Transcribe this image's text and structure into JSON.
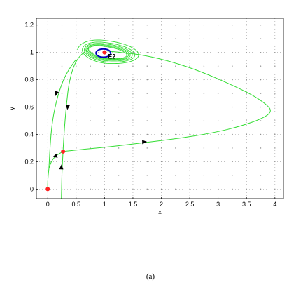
{
  "chart_data": {
    "type": "line",
    "title": "",
    "xlabel": "x",
    "ylabel": "y",
    "xlim": [
      -0.2,
      4.15
    ],
    "ylim": [
      -0.07,
      1.25
    ],
    "xticks": [
      0,
      0.5,
      1,
      1.5,
      2,
      2.5,
      3,
      3.5,
      4
    ],
    "xtick_labels": [
      "0",
      "0.5",
      "1",
      "1.5",
      "2",
      "2.5",
      "3",
      "3.5",
      "4"
    ],
    "yticks": [
      0,
      0.2,
      0.4,
      0.6,
      0.8,
      1,
      1.2
    ],
    "ytick_labels": [
      "0",
      "0.2",
      "0.4",
      "0.6",
      "0.8",
      "1",
      "1.2"
    ],
    "grid": true,
    "legend": "none",
    "colors": {
      "trajectory": "#33dd33",
      "limit_cycle": "#0000bb",
      "equilibrium": "#ff2222",
      "field": "#888888"
    },
    "equilibria": [
      {
        "x": 0,
        "y": 0
      },
      {
        "x": 0.27,
        "y": 0.275
      },
      {
        "x": 1.0,
        "y": 1.0,
        "label": "E2"
      }
    ],
    "annotations": [
      {
        "text": "E2",
        "x": 1.06,
        "y": 0.97
      }
    ],
    "trajectories": [
      {
        "name": "",
        "x": [
          0.27,
          0.6,
          1.1,
          1.7,
          2.3,
          2.9,
          3.4,
          3.8,
          3.95,
          3.85,
          3.6,
          3.2,
          2.7,
          2.2,
          1.7,
          1.3,
          1.05
        ],
        "y": [
          0.275,
          0.29,
          0.31,
          0.34,
          0.37,
          0.41,
          0.46,
          0.52,
          0.57,
          0.62,
          0.69,
          0.77,
          0.86,
          0.93,
          0.98,
          1.0,
          1.01
        ]
      },
      {
        "name": "",
        "x": [
          0.24,
          0.25,
          0.27
        ],
        "y": [
          -0.07,
          0.12,
          0.275
        ]
      },
      {
        "name": "",
        "x": [
          0.27,
          0.14,
          0.06,
          0.02
        ],
        "y": [
          0.275,
          0.245,
          0.2,
          0.15
        ]
      },
      {
        "name": "",
        "x": [
          0.02,
          0.0,
          0.0
        ],
        "y": [
          0.15,
          0.06,
          0.0
        ]
      },
      {
        "name": "",
        "x": [
          0.5,
          0.33,
          0.2,
          0.1,
          0.05,
          0.02
        ],
        "y": [
          0.95,
          0.85,
          0.72,
          0.55,
          0.38,
          0.15
        ]
      },
      {
        "name": "",
        "x": [
          0.72,
          0.5,
          0.38,
          0.33,
          0.3,
          0.28,
          0.27
        ],
        "y": [
          1.03,
          0.95,
          0.8,
          0.62,
          0.48,
          0.36,
          0.275
        ]
      }
    ],
    "spiral": {
      "center": [
        1.0,
        1.0
      ],
      "outer_radius": [
        0.6,
        0.1
      ],
      "inner_radius": [
        0.33,
        0.04
      ],
      "turns": 6
    },
    "limit_cycle": {
      "center": [
        0.98,
        0.995
      ],
      "radius": [
        0.13,
        0.03
      ]
    }
  },
  "caption": "(a)"
}
